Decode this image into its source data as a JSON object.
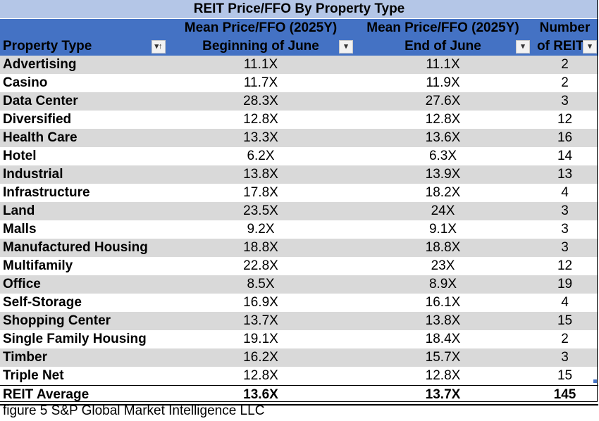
{
  "title": "REIT Price/FFO By Property Type",
  "headers": {
    "col1": "Property Type",
    "col2_line1": "Mean Price/FFO (2025Y)",
    "col2_line2": "Beginning of June",
    "col3_line1": "Mean Price/FFO (2025Y)",
    "col3_line2": "End of June",
    "col4_line1": "Number",
    "col4_line2": "of REIT"
  },
  "filter_icons": {
    "col1": "sort-ascending-filter-icon",
    "col2": "dropdown-filter-icon",
    "col3": "dropdown-filter-icon",
    "col4": "dropdown-filter-icon"
  },
  "rows": [
    {
      "type": "Advertising",
      "begin": "11.1X",
      "end": "11.1X",
      "count": "2"
    },
    {
      "type": "Casino",
      "begin": "11.7X",
      "end": "11.9X",
      "count": "2"
    },
    {
      "type": "Data Center",
      "begin": "28.3X",
      "end": "27.6X",
      "count": "3"
    },
    {
      "type": "Diversified",
      "begin": "12.8X",
      "end": "12.8X",
      "count": "12"
    },
    {
      "type": "Health Care",
      "begin": "13.3X",
      "end": "13.6X",
      "count": "16"
    },
    {
      "type": "Hotel",
      "begin": "6.2X",
      "end": "6.3X",
      "count": "14"
    },
    {
      "type": "Industrial",
      "begin": "13.8X",
      "end": "13.9X",
      "count": "13"
    },
    {
      "type": "Infrastructure",
      "begin": "17.8X",
      "end": "18.2X",
      "count": "4"
    },
    {
      "type": "Land",
      "begin": "23.5X",
      "end": "24X",
      "count": "3"
    },
    {
      "type": "Malls",
      "begin": "9.2X",
      "end": "9.1X",
      "count": "3"
    },
    {
      "type": "Manufactured Housing",
      "begin": "18.8X",
      "end": "18.8X",
      "count": "3"
    },
    {
      "type": "Multifamily",
      "begin": "22.8X",
      "end": "23X",
      "count": "12"
    },
    {
      "type": "Office",
      "begin": "8.5X",
      "end": "8.9X",
      "count": "19"
    },
    {
      "type": "Self-Storage",
      "begin": "16.9X",
      "end": "16.1X",
      "count": "4"
    },
    {
      "type": "Shopping Center",
      "begin": "13.7X",
      "end": "13.8X",
      "count": "15"
    },
    {
      "type": "Single Family Housing",
      "begin": "19.1X",
      "end": "18.4X",
      "count": "2"
    },
    {
      "type": "Timber",
      "begin": "16.2X",
      "end": "15.7X",
      "count": "3"
    },
    {
      "type": "Triple Net",
      "begin": "12.8X",
      "end": "12.8X",
      "count": "15"
    }
  ],
  "average": {
    "type": "REIT Average",
    "begin": "13.6X",
    "end": "13.7X",
    "count": "145"
  },
  "caption": "figure 5 S&P Global Market Intelligence LLC",
  "colors": {
    "title_bg": "#b4c6e7",
    "header_bg": "#4472c4",
    "band_bg": "#d9d9d9"
  }
}
